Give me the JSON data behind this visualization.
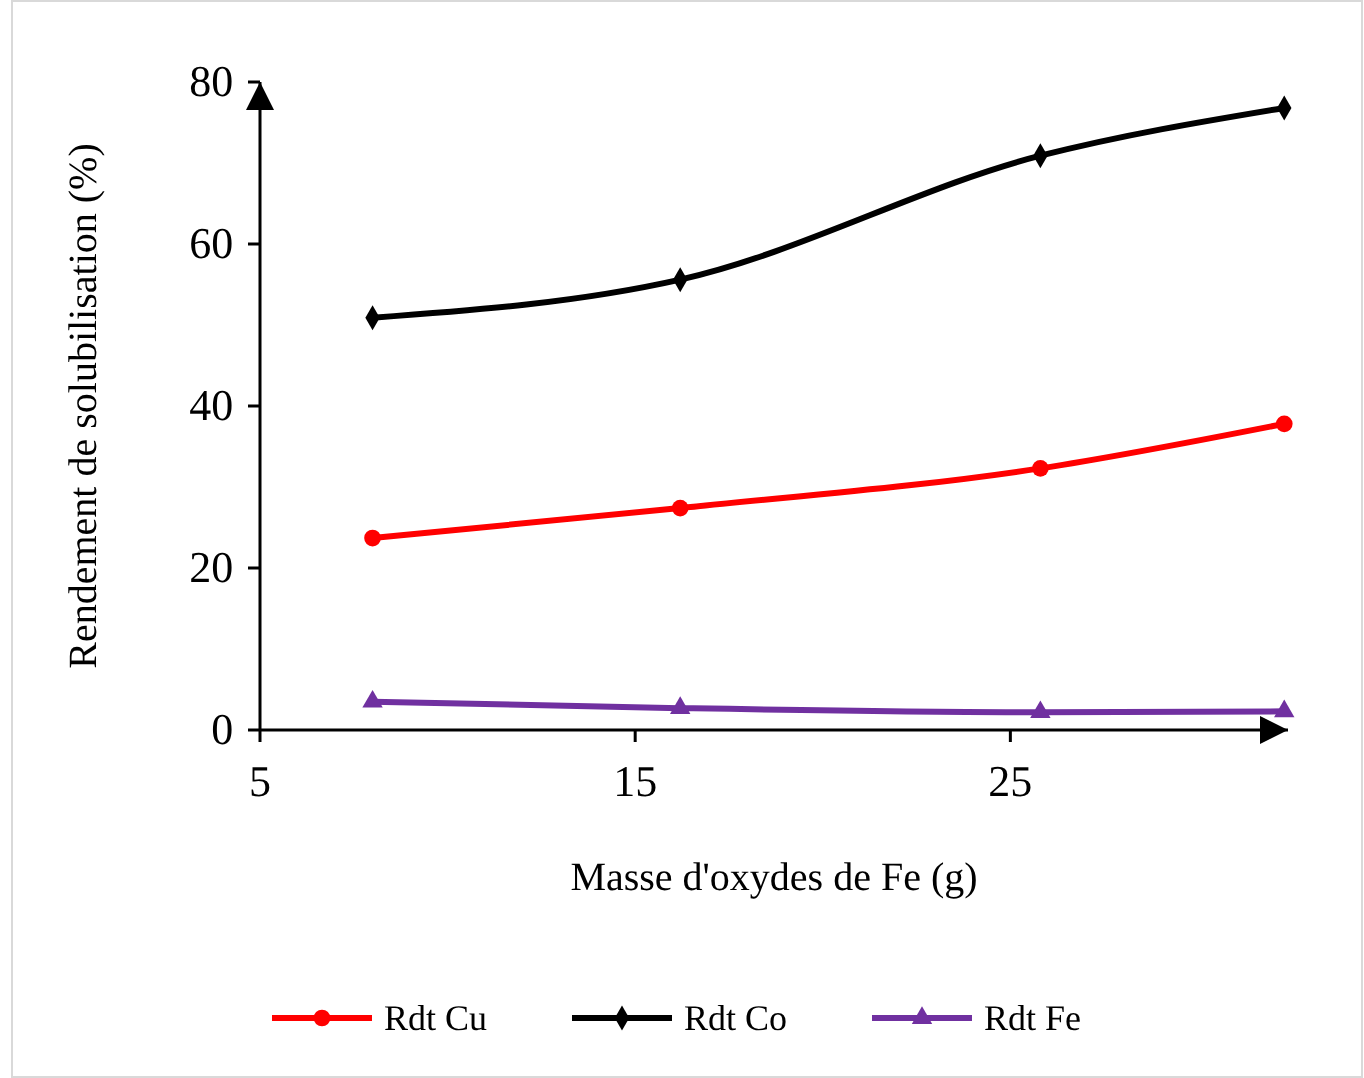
{
  "chart_data": {
    "type": "line",
    "xlabel": "Masse d'oxydes de Fe (g)",
    "ylabel": "Rendement de solubilisation (%)",
    "xlim": [
      5,
      32.4
    ],
    "xticks": [
      5,
      15,
      25
    ],
    "ylim": [
      0,
      80
    ],
    "yticks": [
      0,
      20,
      40,
      60,
      80
    ],
    "grid": false,
    "legend": "bottom",
    "series": [
      {
        "name": "Rdt Cu",
        "color": "#ff0000",
        "marker": "circle",
        "x": [
          8,
          16.2,
          25.8,
          32.3
        ],
        "values": [
          23.7,
          27.4,
          32.3,
          37.8
        ]
      },
      {
        "name": "Rdt Co",
        "color": "#000000",
        "marker": "diamond",
        "x": [
          8,
          16.2,
          25.8,
          32.3
        ],
        "values": [
          50.9,
          55.6,
          70.9,
          76.8
        ]
      },
      {
        "name": "Rdt Fe",
        "color": "#7030a0",
        "marker": "triangle",
        "x": [
          8,
          16.2,
          25.8,
          32.3
        ],
        "values": [
          3.5,
          2.7,
          2.2,
          2.3
        ]
      }
    ]
  }
}
